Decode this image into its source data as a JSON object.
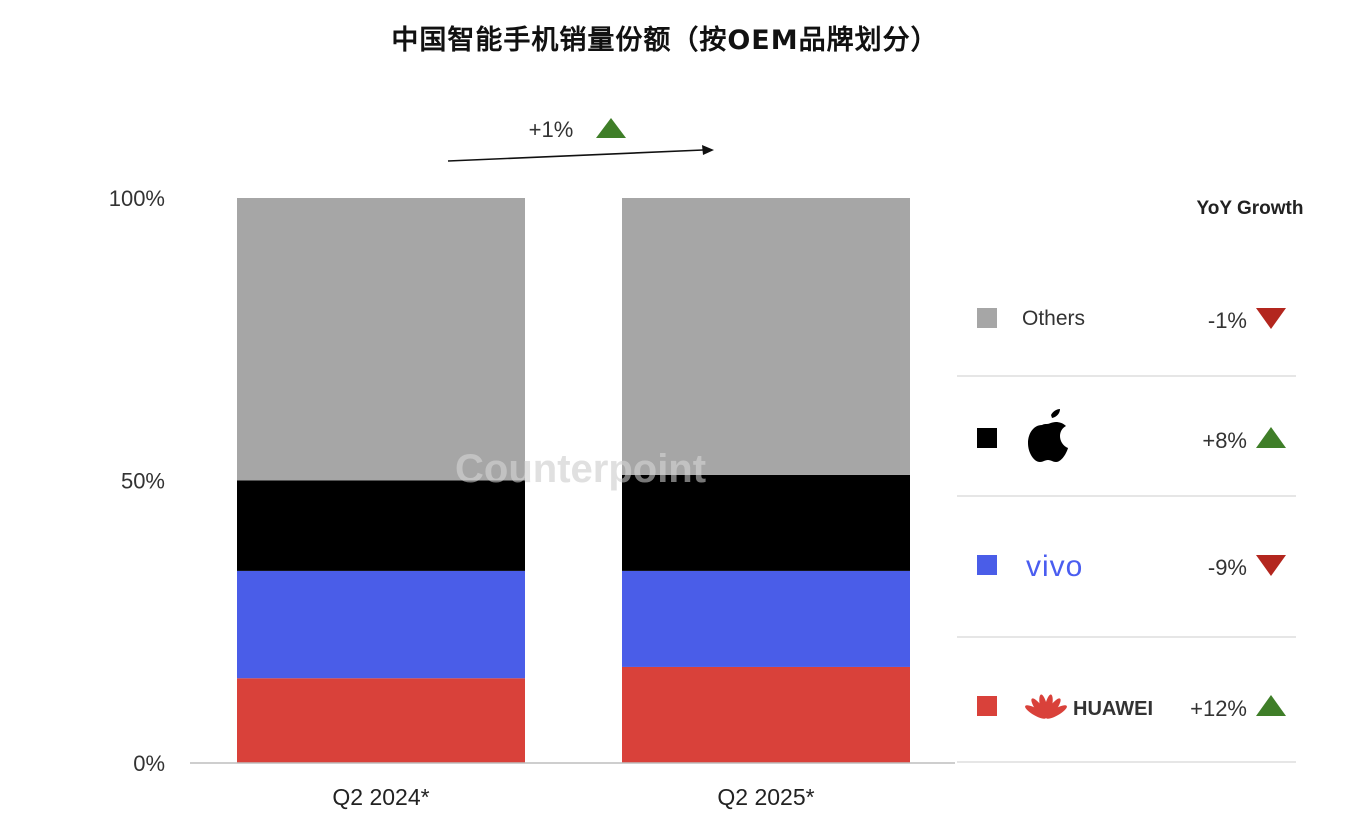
{
  "title": "中国智能手机销量份额（按OEM品牌划分）",
  "watermark": "Counterpoint",
  "chart_data": {
    "type": "bar",
    "stacked": true,
    "categories": [
      "Q2 2024*",
      "Q2 2025*"
    ],
    "ylim": [
      0,
      100
    ],
    "yticks": [
      "0%",
      "50%",
      "100%"
    ],
    "total_growth": "+1%",
    "total_growth_direction": "up",
    "series": [
      {
        "name": "HUAWEI",
        "color": "#d9413a",
        "values": [
          15,
          17
        ],
        "yoy": "+12%",
        "direction": "up",
        "legend_logo": "huawei-logo"
      },
      {
        "name": "vivo",
        "color": "#4a5de8",
        "values": [
          19,
          17
        ],
        "yoy": "-9%",
        "direction": "down",
        "legend_logo": "vivo-logo"
      },
      {
        "name": "Apple",
        "color": "#000000",
        "values": [
          16,
          17
        ],
        "yoy": "+8%",
        "direction": "up",
        "legend_logo": "apple-logo"
      },
      {
        "name": "Others",
        "color": "#a6a6a6",
        "values": [
          50,
          49
        ],
        "yoy": "-1%",
        "direction": "down"
      }
    ],
    "legend_header": "YoY Growth",
    "colors": {
      "up": "#3f7e28",
      "down": "#b3261e"
    }
  }
}
